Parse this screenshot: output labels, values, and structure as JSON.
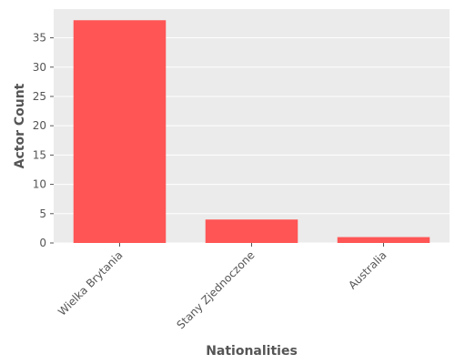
{
  "chart_data": {
    "type": "bar",
    "title": "",
    "xlabel": "Nationalities",
    "ylabel": "Actor Count",
    "categories": [
      "Wielka Brytania",
      "Stany Zjednoczone",
      "Australia"
    ],
    "values": [
      38,
      4,
      1
    ],
    "ylim": [
      0,
      39.9
    ],
    "yticks": [
      0,
      5,
      10,
      15,
      20,
      25,
      30,
      35
    ],
    "grid": true,
    "bar_color": "#ff5555",
    "plot_background": "#ebebeb"
  }
}
